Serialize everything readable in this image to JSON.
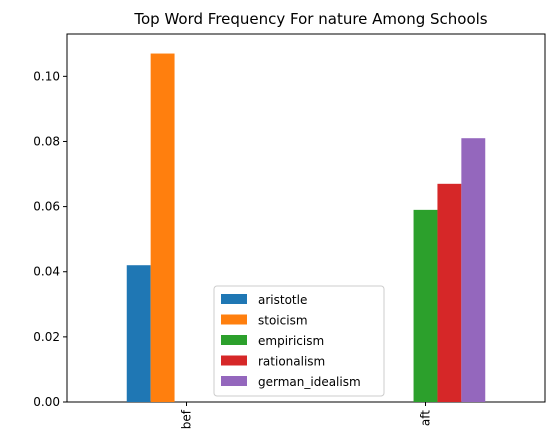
{
  "chart_data": {
    "type": "bar",
    "title": "Top Word Frequency For nature Among Schools",
    "xlabel": "",
    "ylabel": "",
    "categories": [
      "bef",
      "aft"
    ],
    "ylim": [
      0,
      0.113
    ],
    "yticks": [
      0.0,
      0.02,
      0.04,
      0.06,
      0.08,
      0.1
    ],
    "ytick_labels": [
      "0.00",
      "0.02",
      "0.04",
      "0.06",
      "0.08",
      "0.10"
    ],
    "grid": false,
    "legend_position": "lower center",
    "series": [
      {
        "name": "aristotle",
        "color": "#1f77b4",
        "values": [
          0.042,
          0
        ]
      },
      {
        "name": "stoicism",
        "color": "#ff7f0e",
        "values": [
          0.107,
          0
        ]
      },
      {
        "name": "empiricism",
        "color": "#2ca02c",
        "values": [
          0,
          0.059
        ]
      },
      {
        "name": "rationalism",
        "color": "#d62728",
        "values": [
          0,
          0.067
        ]
      },
      {
        "name": "german_idealism",
        "color": "#9467bd",
        "values": [
          0,
          0.081
        ]
      }
    ]
  }
}
